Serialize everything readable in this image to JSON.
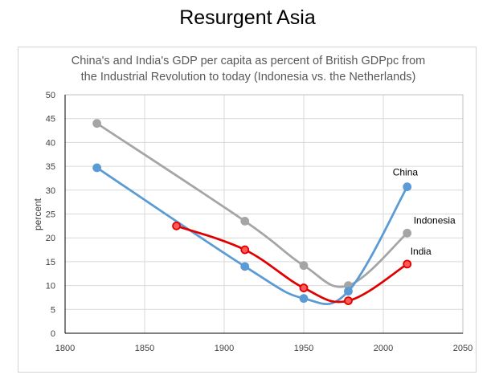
{
  "page": {
    "title": "Resurgent Asia"
  },
  "chart_data": {
    "type": "line",
    "title": "China's and India's GDP per capita as percent of British GDPpc from",
    "subtitle": "the Industrial Revolution to today (Indonesia vs. the Netherlands)",
    "xlabel": "",
    "ylabel": "percent",
    "xlim": [
      1800,
      2050
    ],
    "ylim": [
      0,
      50
    ],
    "xticks": [
      1800,
      1850,
      1900,
      1950,
      2000,
      2050
    ],
    "yticks": [
      0,
      5,
      10,
      15,
      20,
      25,
      30,
      35,
      40,
      45,
      50
    ],
    "grid": true,
    "legend": "none",
    "series": [
      {
        "name": "Indonesia",
        "color": "#a5a5a5",
        "marker_fill": "#a5a5a5",
        "marker_stroke": "#a5a5a5",
        "x": [
          1820,
          1913,
          1950,
          1978,
          2015
        ],
        "y": [
          44,
          23.5,
          14.2,
          10,
          21
        ]
      },
      {
        "name": "China",
        "color": "#5b9bd5",
        "marker_fill": "#5b9bd5",
        "marker_stroke": "#5b9bd5",
        "x": [
          1820,
          1913,
          1950,
          1978,
          2015
        ],
        "y": [
          34.7,
          14,
          7.3,
          8.8,
          30.7
        ]
      },
      {
        "name": "India",
        "color": "#e00000",
        "marker_fill": "#ff5a5a",
        "marker_stroke": "#e00000",
        "x": [
          1870,
          1913,
          1950,
          1978,
          2015
        ],
        "y": [
          22.5,
          17.5,
          9.5,
          6.8,
          14.5
        ]
      }
    ]
  }
}
